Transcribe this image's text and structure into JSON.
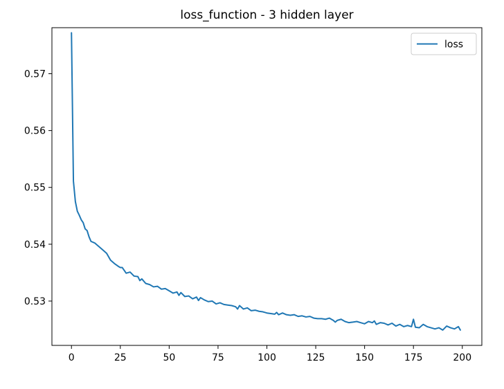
{
  "chart_data": {
    "type": "line",
    "title": "loss_function - 3 hidden layer",
    "xlabel": "",
    "ylabel": "",
    "xlim": [
      -10,
      210
    ],
    "ylim": [
      0.5222,
      0.5781
    ],
    "xticks": [
      0,
      25,
      50,
      75,
      100,
      125,
      150,
      175,
      200
    ],
    "yticks": [
      0.53,
      0.54,
      0.55,
      0.56,
      0.57
    ],
    "ytick_labels": [
      "0.53",
      "0.54",
      "0.55",
      "0.56",
      "0.57"
    ],
    "grid": false,
    "legend": {
      "position": "top-right"
    },
    "series": [
      {
        "name": "loss",
        "color": "#1f77b4",
        "x": [
          0,
          1,
          2,
          3,
          4,
          5,
          6,
          7,
          8,
          9,
          10,
          12,
          14,
          16,
          18,
          20,
          22,
          24,
          25,
          26,
          28,
          30,
          32,
          34,
          35,
          36,
          38,
          40,
          42,
          44,
          46,
          48,
          50,
          52,
          54,
          55,
          56,
          58,
          60,
          62,
          64,
          65,
          66,
          68,
          70,
          72,
          74,
          76,
          78,
          80,
          82,
          84,
          85,
          86,
          88,
          90,
          92,
          94,
          96,
          98,
          100,
          102,
          104,
          105,
          106,
          108,
          110,
          112,
          114,
          116,
          118,
          120,
          122,
          124,
          126,
          128,
          130,
          132,
          134,
          135,
          136,
          138,
          140,
          142,
          144,
          146,
          148,
          150,
          152,
          154,
          155,
          156,
          158,
          160,
          162,
          164,
          166,
          168,
          170,
          172,
          174,
          175,
          176,
          178,
          180,
          182,
          184,
          186,
          188,
          190,
          192,
          194,
          196,
          198,
          199
        ],
        "values": [
          0.5772,
          0.5511,
          0.5475,
          0.5458,
          0.5451,
          0.5443,
          0.5438,
          0.5427,
          0.5424,
          0.5413,
          0.5405,
          0.5402,
          0.5396,
          0.539,
          0.5384,
          0.5372,
          0.5366,
          0.5361,
          0.5359,
          0.5359,
          0.5349,
          0.5351,
          0.5344,
          0.5343,
          0.5336,
          0.5339,
          0.5331,
          0.5329,
          0.5325,
          0.5326,
          0.5321,
          0.5322,
          0.5318,
          0.5314,
          0.5316,
          0.531,
          0.5315,
          0.5308,
          0.5309,
          0.5304,
          0.5307,
          0.5301,
          0.5306,
          0.5302,
          0.5299,
          0.53,
          0.5295,
          0.5297,
          0.5294,
          0.5293,
          0.5292,
          0.529,
          0.5286,
          0.5292,
          0.5286,
          0.5288,
          0.5283,
          0.5284,
          0.5282,
          0.5281,
          0.5279,
          0.5278,
          0.5277,
          0.528,
          0.5276,
          0.5279,
          0.5276,
          0.5275,
          0.5276,
          0.5273,
          0.5274,
          0.5272,
          0.5273,
          0.527,
          0.5269,
          0.5269,
          0.5268,
          0.527,
          0.5266,
          0.5263,
          0.5266,
          0.5268,
          0.5264,
          0.5262,
          0.5263,
          0.5264,
          0.5262,
          0.526,
          0.5264,
          0.5262,
          0.5265,
          0.5259,
          0.5262,
          0.5261,
          0.5258,
          0.5261,
          0.5256,
          0.5259,
          0.5255,
          0.5257,
          0.5255,
          0.5268,
          0.5254,
          0.5253,
          0.5259,
          0.5255,
          0.5253,
          0.5251,
          0.5253,
          0.5249,
          0.5256,
          0.5253,
          0.5251,
          0.5255,
          0.5249
        ]
      }
    ]
  }
}
